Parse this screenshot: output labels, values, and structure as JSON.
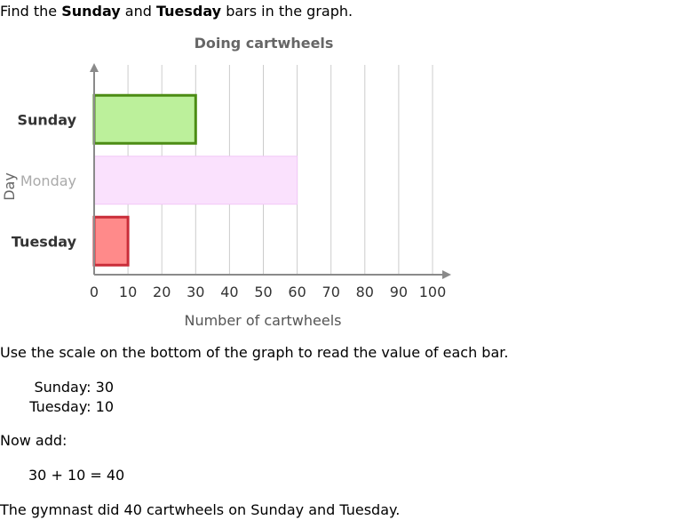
{
  "intro": {
    "prefix": "Find the ",
    "bold1": "Sunday",
    "middle": " and ",
    "bold2": "Tuesday",
    "suffix": " bars in the graph."
  },
  "chart_data": {
    "type": "bar",
    "orientation": "horizontal",
    "title": "Doing cartwheels",
    "xlabel": "Number of cartwheels",
    "ylabel": "Day",
    "xlim": [
      0,
      100
    ],
    "xticks": [
      0,
      10,
      20,
      30,
      40,
      50,
      60,
      70,
      80,
      90,
      100
    ],
    "categories": [
      "Sunday",
      "Monday",
      "Tuesday"
    ],
    "values": [
      30,
      60,
      10
    ],
    "highlighted": [
      true,
      false,
      true
    ],
    "grid": true,
    "colors": {
      "Sunday": {
        "fill": "#bcf09b",
        "stroke": "#4c8c14"
      },
      "Monday": {
        "fill": "#fae1fd",
        "stroke": "#f2c8f7"
      },
      "Tuesday": {
        "fill": "#ff8a8a",
        "stroke": "#c92d39"
      },
      "grid": "#cccccc",
      "axis": "#8a8a8a"
    }
  },
  "explanation": {
    "use_scale": "Use the scale on the bottom of the graph to read the value of each bar.",
    "values": [
      {
        "label": "Sunday:",
        "value": "30"
      },
      {
        "label": "Tuesday:",
        "value": "10"
      }
    ],
    "now_add": "Now add:",
    "equation": "30 + 10 = 40",
    "conclusion": "The gymnast did 40 cartwheels on Sunday and Tuesday."
  }
}
